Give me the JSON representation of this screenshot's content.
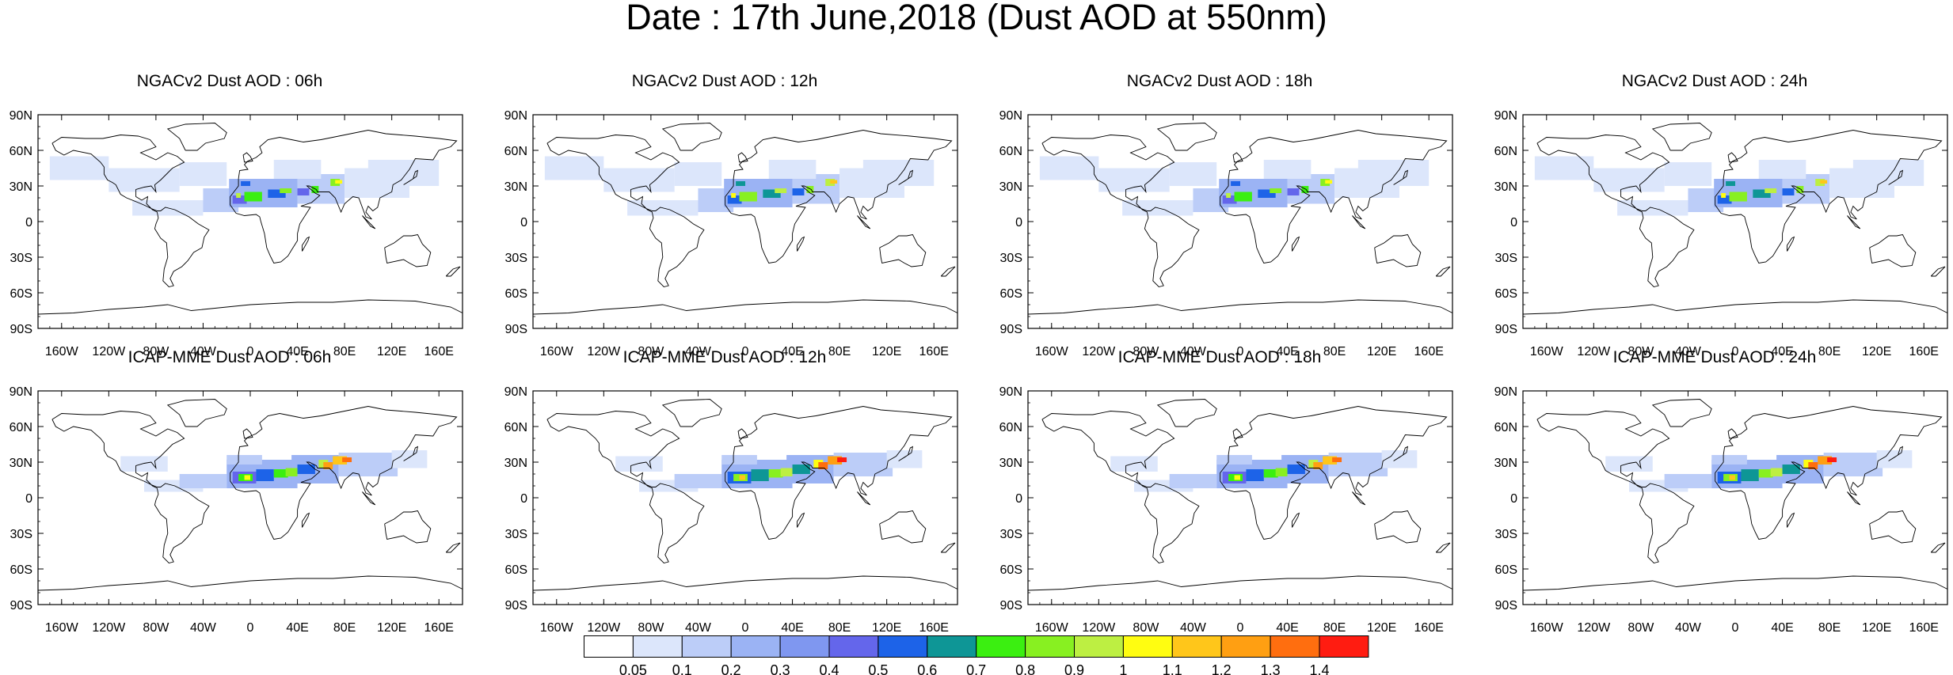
{
  "title": "Date : 17th June,2018 (Dust AOD at 550nm)",
  "chart_data": {
    "type": "heatmap",
    "panels": [
      {
        "title": "NGACv2 Dust AOD : 06h",
        "model": "NGACv2",
        "lead": "06h"
      },
      {
        "title": "NGACv2 Dust AOD : 12h",
        "model": "NGACv2",
        "lead": "12h"
      },
      {
        "title": "NGACv2 Dust AOD : 18h",
        "model": "NGACv2",
        "lead": "18h"
      },
      {
        "title": "NGACv2 Dust AOD : 24h",
        "model": "NGACv2",
        "lead": "24h"
      },
      {
        "title": "ICAP-MME Dust AOD : 06h",
        "model": "ICAP-MME",
        "lead": "06h"
      },
      {
        "title": "ICAP-MME Dust AOD : 12h",
        "model": "ICAP-MME",
        "lead": "12h"
      },
      {
        "title": "ICAP-MME Dust AOD : 18h",
        "model": "ICAP-MME",
        "lead": "18h"
      },
      {
        "title": "ICAP-MME Dust AOD : 24h",
        "model": "ICAP-MME",
        "lead": "24h"
      }
    ],
    "x_ticks": [
      "160W",
      "120W",
      "80W",
      "40W",
      "0",
      "40E",
      "80E",
      "120E",
      "160E"
    ],
    "x_tick_values": [
      -160,
      -120,
      -80,
      -40,
      0,
      40,
      80,
      120,
      160
    ],
    "y_ticks": [
      "90N",
      "60N",
      "30N",
      "0",
      "30S",
      "60S",
      "90S"
    ],
    "y_tick_values": [
      90,
      60,
      30,
      0,
      -30,
      -60,
      -90
    ],
    "xlim": [
      -180,
      180
    ],
    "ylim": [
      -90,
      90
    ],
    "colorbar": {
      "labels": [
        "0.05",
        "0.1",
        "0.2",
        "0.3",
        "0.4",
        "0.5",
        "0.6",
        "0.7",
        "0.8",
        "0.9",
        "1",
        "1.1",
        "1.2",
        "1.3",
        "1.4"
      ],
      "colors": [
        "#ffffff",
        "#dce6fb",
        "#bccdf8",
        "#9bb3f4",
        "#7f97f0",
        "#6466eb",
        "#1d63e8",
        "#0e9696",
        "#3bef11",
        "#88f021",
        "#bdef42",
        "#fffd11",
        "#ffc61a",
        "#ff9f12",
        "#ff6e0f",
        "#ff1c11"
      ]
    }
  }
}
